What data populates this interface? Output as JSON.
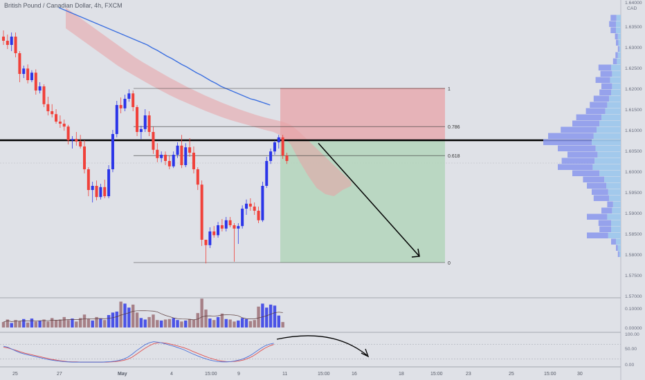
{
  "header": {
    "title": "British Pound / Canadian Dollar, 4h, FXCM",
    "currency": "CAD"
  },
  "colors": {
    "background": "#dfe1e7",
    "bull": "#2b35e8",
    "bear": "#f0413a",
    "ma": "#3b6fe0",
    "cloud": "#e8a3a5",
    "stop_zone": "#e7a8ad",
    "target_zone": "#b4d5bb",
    "level": "#000000",
    "stoch_k": "#4a6fd8",
    "stoch_d": "#e05050"
  },
  "chart_data": {
    "type": "candlestick",
    "instrument": "GBP/CAD",
    "timeframe": "4h",
    "y_axis_ticks": [
      "1.64000",
      "1.63500",
      "1.63000",
      "1.62500",
      "1.62000",
      "1.61500",
      "1.61000",
      "1.60500",
      "1.60000",
      "1.59500",
      "1.59000",
      "1.58500",
      "1.58000",
      "1.57500",
      "1.57000"
    ],
    "x_axis_ticks": [
      "25",
      "27",
      "May",
      "4",
      "15:00",
      "9",
      "11",
      "15:00",
      "16",
      "18",
      "15:00",
      "23",
      "25",
      "15:00",
      "30"
    ],
    "ylim": [
      1.57,
      1.64
    ],
    "candles": [
      {
        "o": 1.6325,
        "h": 1.634,
        "l": 1.6305,
        "c": 1.6315
      },
      {
        "o": 1.6315,
        "h": 1.633,
        "l": 1.6295,
        "c": 1.6305
      },
      {
        "o": 1.6305,
        "h": 1.6335,
        "l": 1.629,
        "c": 1.6325
      },
      {
        "o": 1.6325,
        "h": 1.6335,
        "l": 1.6275,
        "c": 1.6285
      },
      {
        "o": 1.6285,
        "h": 1.629,
        "l": 1.6215,
        "c": 1.6235
      },
      {
        "o": 1.6235,
        "h": 1.6255,
        "l": 1.6225,
        "c": 1.6248
      },
      {
        "o": 1.6248,
        "h": 1.6258,
        "l": 1.6212,
        "c": 1.622
      },
      {
        "o": 1.622,
        "h": 1.6244,
        "l": 1.6215,
        "c": 1.6238
      },
      {
        "o": 1.6238,
        "h": 1.6246,
        "l": 1.6185,
        "c": 1.6195
      },
      {
        "o": 1.6195,
        "h": 1.6215,
        "l": 1.6188,
        "c": 1.6205
      },
      {
        "o": 1.6205,
        "h": 1.621,
        "l": 1.6155,
        "c": 1.6162
      },
      {
        "o": 1.6162,
        "h": 1.618,
        "l": 1.6135,
        "c": 1.6145
      },
      {
        "o": 1.6145,
        "h": 1.6162,
        "l": 1.613,
        "c": 1.6138
      },
      {
        "o": 1.6138,
        "h": 1.615,
        "l": 1.6115,
        "c": 1.612
      },
      {
        "o": 1.612,
        "h": 1.6135,
        "l": 1.6105,
        "c": 1.6115
      },
      {
        "o": 1.6115,
        "h": 1.6125,
        "l": 1.6098,
        "c": 1.6108
      },
      {
        "o": 1.6108,
        "h": 1.6112,
        "l": 1.6065,
        "c": 1.6075
      },
      {
        "o": 1.6075,
        "h": 1.6085,
        "l": 1.6055,
        "c": 1.6078
      },
      {
        "o": 1.6078,
        "h": 1.6095,
        "l": 1.6062,
        "c": 1.6072
      },
      {
        "o": 1.6072,
        "h": 1.6088,
        "l": 1.6055,
        "c": 1.606
      },
      {
        "o": 1.606,
        "h": 1.6075,
        "l": 1.5995,
        "c": 1.6005
      },
      {
        "o": 1.6005,
        "h": 1.601,
        "l": 1.594,
        "c": 1.5955
      },
      {
        "o": 1.5955,
        "h": 1.5975,
        "l": 1.5925,
        "c": 1.5965
      },
      {
        "o": 1.5965,
        "h": 1.5978,
        "l": 1.593,
        "c": 1.5938
      },
      {
        "o": 1.5938,
        "h": 1.597,
        "l": 1.5932,
        "c": 1.5962
      },
      {
        "o": 1.5962,
        "h": 1.598,
        "l": 1.5935,
        "c": 1.594
      },
      {
        "o": 1.594,
        "h": 1.6015,
        "l": 1.5935,
        "c": 1.6005
      },
      {
        "o": 1.6005,
        "h": 1.61,
        "l": 1.5998,
        "c": 1.609
      },
      {
        "o": 1.609,
        "h": 1.617,
        "l": 1.6082,
        "c": 1.616
      },
      {
        "o": 1.616,
        "h": 1.6178,
        "l": 1.614,
        "c": 1.6152
      },
      {
        "o": 1.6152,
        "h": 1.6185,
        "l": 1.6145,
        "c": 1.6175
      },
      {
        "o": 1.6175,
        "h": 1.6198,
        "l": 1.6168,
        "c": 1.6188
      },
      {
        "o": 1.6188,
        "h": 1.6195,
        "l": 1.6145,
        "c": 1.6155
      },
      {
        "o": 1.6155,
        "h": 1.616,
        "l": 1.6085,
        "c": 1.6095
      },
      {
        "o": 1.6095,
        "h": 1.611,
        "l": 1.6078,
        "c": 1.6102
      },
      {
        "o": 1.6102,
        "h": 1.615,
        "l": 1.6095,
        "c": 1.6135
      },
      {
        "o": 1.6135,
        "h": 1.6145,
        "l": 1.6085,
        "c": 1.6095
      },
      {
        "o": 1.6095,
        "h": 1.6108,
        "l": 1.6042,
        "c": 1.6052
      },
      {
        "o": 1.6052,
        "h": 1.6068,
        "l": 1.6022,
        "c": 1.6032
      },
      {
        "o": 1.6032,
        "h": 1.6048,
        "l": 1.6022,
        "c": 1.604
      },
      {
        "o": 1.604,
        "h": 1.6048,
        "l": 1.6015,
        "c": 1.6025
      },
      {
        "o": 1.6025,
        "h": 1.6038,
        "l": 1.6005,
        "c": 1.6012
      },
      {
        "o": 1.6012,
        "h": 1.6048,
        "l": 1.6008,
        "c": 1.604
      },
      {
        "o": 1.604,
        "h": 1.607,
        "l": 1.6032,
        "c": 1.6062
      },
      {
        "o": 1.6062,
        "h": 1.6088,
        "l": 1.6008,
        "c": 1.6015
      },
      {
        "o": 1.6015,
        "h": 1.6068,
        "l": 1.601,
        "c": 1.6058
      },
      {
        "o": 1.6058,
        "h": 1.608,
        "l": 1.6035,
        "c": 1.6045
      },
      {
        "o": 1.6045,
        "h": 1.606,
        "l": 1.5995,
        "c": 1.6005
      },
      {
        "o": 1.6005,
        "h": 1.601,
        "l": 1.5955,
        "c": 1.5968
      },
      {
        "o": 1.5968,
        "h": 1.5978,
        "l": 1.582,
        "c": 1.5835
      },
      {
        "o": 1.5835,
        "h": 1.5835,
        "l": 1.5778,
        "c": 1.5822
      },
      {
        "o": 1.5822,
        "h": 1.5865,
        "l": 1.5815,
        "c": 1.5855
      },
      {
        "o": 1.5855,
        "h": 1.5868,
        "l": 1.584,
        "c": 1.5846
      },
      {
        "o": 1.5846,
        "h": 1.5878,
        "l": 1.584,
        "c": 1.587
      },
      {
        "o": 1.587,
        "h": 1.5885,
        "l": 1.5855,
        "c": 1.5862
      },
      {
        "o": 1.5862,
        "h": 1.589,
        "l": 1.5855,
        "c": 1.5882
      },
      {
        "o": 1.5882,
        "h": 1.589,
        "l": 1.5865,
        "c": 1.587
      },
      {
        "o": 1.587,
        "h": 1.5875,
        "l": 1.5782,
        "c": 1.5862
      },
      {
        "o": 1.5862,
        "h": 1.5875,
        "l": 1.5825,
        "c": 1.5868
      },
      {
        "o": 1.5868,
        "h": 1.5918,
        "l": 1.5862,
        "c": 1.591
      },
      {
        "o": 1.591,
        "h": 1.5932,
        "l": 1.5895,
        "c": 1.5922
      },
      {
        "o": 1.5922,
        "h": 1.5935,
        "l": 1.5905,
        "c": 1.5915
      },
      {
        "o": 1.5915,
        "h": 1.5925,
        "l": 1.5895,
        "c": 1.5905
      },
      {
        "o": 1.5905,
        "h": 1.5915,
        "l": 1.5875,
        "c": 1.5882
      },
      {
        "o": 1.5882,
        "h": 1.5975,
        "l": 1.5878,
        "c": 1.5965
      },
      {
        "o": 1.5965,
        "h": 1.6035,
        "l": 1.596,
        "c": 1.6025
      },
      {
        "o": 1.6025,
        "h": 1.6055,
        "l": 1.6018,
        "c": 1.6048
      },
      {
        "o": 1.6048,
        "h": 1.6075,
        "l": 1.604,
        "c": 1.607
      },
      {
        "o": 1.607,
        "h": 1.6088,
        "l": 1.6055,
        "c": 1.6082
      },
      {
        "o": 1.6082,
        "h": 1.6088,
        "l": 1.603,
        "c": 1.6038
      },
      {
        "o": 1.6038,
        "h": 1.6045,
        "l": 1.6018,
        "c": 1.6025
      }
    ],
    "ma_values": [
      1.6395,
      1.639,
      1.6385,
      1.638,
      1.6375,
      1.637,
      1.6365,
      1.636,
      1.6355,
      1.635,
      1.6345,
      1.634,
      1.6335,
      1.633,
      1.6325,
      1.632,
      1.6315,
      1.631,
      1.6305,
      1.6298,
      1.6292,
      1.6285,
      1.6278,
      1.6272,
      1.6265,
      1.6258,
      1.6252,
      1.6245,
      1.6238,
      1.6232,
      1.6225,
      1.6218,
      1.6212,
      1.6205,
      1.62,
      1.6195,
      1.619,
      1.6185,
      1.618,
      1.6175,
      1.6172,
      1.6168,
      1.6164,
      1.616
    ],
    "cloud": {
      "upper": [
        1.6395,
        1.638,
        1.6365,
        1.635,
        1.6335,
        1.632,
        1.6305,
        1.629,
        1.6275,
        1.6262,
        1.625,
        1.6238,
        1.6226,
        1.6215,
        1.6204,
        1.6194,
        1.6184,
        1.6175,
        1.6166,
        1.6158,
        1.615,
        1.6143,
        1.6136,
        1.613,
        1.6125,
        1.612,
        1.6112,
        1.6095,
        1.6075,
        1.6055,
        1.6035,
        1.6015,
        1.5995,
        1.5975
      ],
      "lower": [
        1.6345,
        1.633,
        1.6315,
        1.63,
        1.6285,
        1.627,
        1.6255,
        1.6242,
        1.623,
        1.6218,
        1.6206,
        1.6195,
        1.6184,
        1.6174,
        1.6165,
        1.6156,
        1.6147,
        1.6139,
        1.6131,
        1.6124,
        1.6118,
        1.6112,
        1.6106,
        1.61,
        1.6095,
        1.6085,
        1.6065,
        1.6025,
        1.599,
        1.596,
        1.5945,
        1.594,
        1.5955,
        1.5965
      ]
    },
    "key_level": 1.6075,
    "fib_levels": [
      {
        "label": "1",
        "price": 1.62
      },
      {
        "label": "0.786",
        "price": 1.6108
      },
      {
        "label": "0.618",
        "price": 1.6038
      },
      {
        "label": "0",
        "price": 1.578
      }
    ],
    "trade": {
      "stop": 1.62,
      "entry": 1.6075,
      "target": 1.578
    },
    "forecast": {
      "from": 1.6068,
      "to": 1.5795
    },
    "volume_profile": [
      {
        "price": 1.637,
        "total": 1.05,
        "buy": 0.45
      },
      {
        "price": 1.6355,
        "total": 1.2,
        "buy": 0.5
      },
      {
        "price": 1.634,
        "total": 1.05,
        "buy": 0.5
      },
      {
        "price": 1.6325,
        "total": 0.6,
        "buy": 0.3
      },
      {
        "price": 1.631,
        "total": 0.5,
        "buy": 0.25
      },
      {
        "price": 1.6295,
        "total": 0.3,
        "buy": 0.15
      },
      {
        "price": 1.628,
        "total": 0.55,
        "buy": 0.3
      },
      {
        "price": 1.6265,
        "total": 0.8,
        "buy": 0.4
      },
      {
        "price": 1.625,
        "total": 2.3,
        "buy": 1.0
      },
      {
        "price": 1.6235,
        "total": 2.1,
        "buy": 0.9
      },
      {
        "price": 1.622,
        "total": 2.6,
        "buy": 1.1
      },
      {
        "price": 1.6205,
        "total": 2.0,
        "buy": 0.9
      },
      {
        "price": 1.619,
        "total": 2.2,
        "buy": 1.0
      },
      {
        "price": 1.6175,
        "total": 2.8,
        "buy": 1.2
      },
      {
        "price": 1.616,
        "total": 3.2,
        "buy": 1.4
      },
      {
        "price": 1.6145,
        "total": 3.6,
        "buy": 1.6
      },
      {
        "price": 1.613,
        "total": 4.6,
        "buy": 2.0
      },
      {
        "price": 1.6115,
        "total": 5.0,
        "buy": 2.2
      },
      {
        "price": 1.61,
        "total": 6.2,
        "buy": 2.5
      },
      {
        "price": 1.6085,
        "total": 7.5,
        "buy": 2.8
      },
      {
        "price": 1.607,
        "total": 8.0,
        "buy": 3.0
      },
      {
        "price": 1.6055,
        "total": 6.5,
        "buy": 2.6
      },
      {
        "price": 1.604,
        "total": 5.5,
        "buy": 2.4
      },
      {
        "price": 1.6025,
        "total": 6.1,
        "buy": 2.7
      },
      {
        "price": 1.601,
        "total": 6.5,
        "buy": 2.9
      },
      {
        "price": 1.5995,
        "total": 5.0,
        "buy": 2.2
      },
      {
        "price": 1.598,
        "total": 3.9,
        "buy": 1.7
      },
      {
        "price": 1.5965,
        "total": 3.5,
        "buy": 1.5
      },
      {
        "price": 1.595,
        "total": 3.0,
        "buy": 1.3
      },
      {
        "price": 1.5935,
        "total": 2.8,
        "buy": 1.2
      },
      {
        "price": 1.592,
        "total": 1.4,
        "buy": 0.8
      },
      {
        "price": 1.5905,
        "total": 2.0,
        "buy": 0.9
      },
      {
        "price": 1.589,
        "total": 3.5,
        "buy": 1.4
      },
      {
        "price": 1.5875,
        "total": 2.3,
        "buy": 1.0
      },
      {
        "price": 1.586,
        "total": 2.2,
        "buy": 1.0
      },
      {
        "price": 1.5845,
        "total": 3.5,
        "buy": 1.3
      },
      {
        "price": 1.583,
        "total": 1.0,
        "buy": 0.5
      },
      {
        "price": 1.5815,
        "total": 0.5,
        "buy": 0.3
      },
      {
        "price": 1.58,
        "total": 0.3,
        "buy": 0.15
      }
    ],
    "volume_axis_ticks": [
      "0.10000",
      "0.00000"
    ],
    "volume": [
      1.1,
      1.6,
      0.9,
      1.5,
      1.3,
      1.7,
      1.0,
      1.8,
      1.2,
      1.4,
      1.6,
      1.2,
      1.9,
      1.5,
      1.6,
      2.1,
      1.5,
      1.8,
      1.2,
      1.9,
      2.6,
      1.7,
      1.4,
      2.1,
      1.8,
      1.5,
      2.5,
      3.0,
      3.2,
      5.2,
      4.8,
      4.0,
      4.6,
      3.0,
      1.9,
      1.6,
      2.1,
      2.6,
      1.5,
      1.4,
      1.6,
      1.7,
      1.9,
      1.5,
      1.2,
      1.4,
      1.7,
      1.6,
      2.9,
      5.8,
      3.6,
      1.8,
      1.5,
      2.1,
      2.8,
      1.7,
      1.6,
      1.2,
      1.4,
      1.9,
      1.7,
      1.3,
      1.5,
      4.2,
      4.8,
      4.0,
      4.6,
      4.4,
      2.4,
      1.1
    ],
    "stoch_axis_ticks": [
      "100.00",
      "50.00",
      "0.00"
    ],
    "stoch_k": [
      72,
      68,
      60,
      52,
      45,
      40,
      36,
      32,
      28,
      24,
      20,
      17,
      14,
      12,
      10,
      9,
      8,
      8,
      8,
      8,
      8,
      8,
      8,
      8,
      9,
      10,
      12,
      15,
      20,
      28,
      40,
      54,
      66,
      78,
      86,
      90,
      88,
      85,
      80,
      75,
      70,
      64,
      58,
      50,
      42,
      35,
      28,
      22,
      17,
      13,
      10,
      9,
      9,
      10,
      13,
      17,
      22,
      30,
      40,
      52,
      64,
      74,
      80,
      84
    ],
    "stoch_d": [
      68,
      65,
      60,
      55,
      49,
      44,
      40,
      36,
      32,
      28,
      24,
      20,
      17,
      14,
      12,
      10,
      9,
      9,
      8,
      8,
      8,
      8,
      8,
      8,
      8,
      9,
      10,
      12,
      15,
      20,
      28,
      40,
      52,
      64,
      74,
      82,
      86,
      86,
      84,
      80,
      76,
      71,
      66,
      60,
      52,
      45,
      38,
      31,
      25,
      20,
      15,
      12,
      10,
      10,
      11,
      13,
      17,
      23,
      31,
      42,
      54,
      65,
      73,
      79
    ]
  }
}
